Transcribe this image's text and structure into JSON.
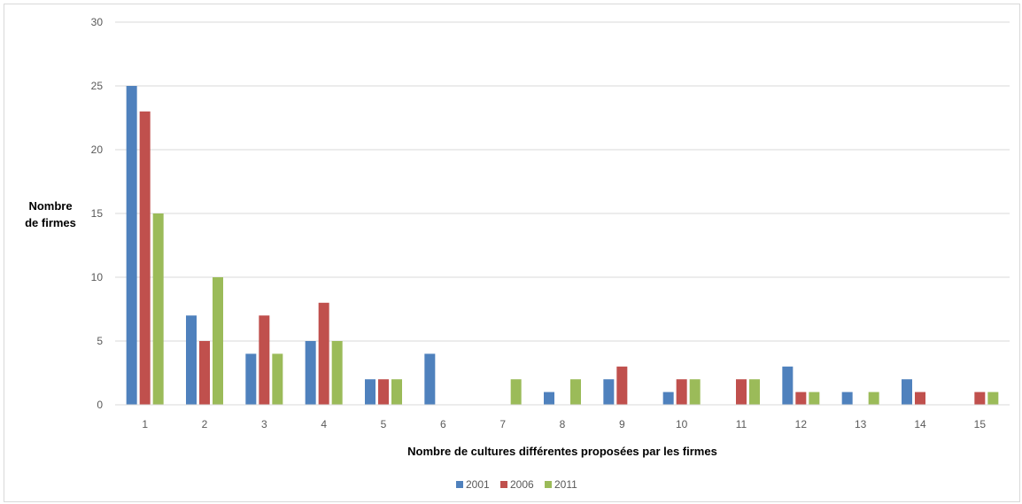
{
  "chart_data": {
    "type": "bar",
    "title": "",
    "xlabel": "Nombre de cultures différentes proposées par les firmes",
    "ylabel_lines": [
      "Nombre",
      "de firmes"
    ],
    "ylim": [
      0,
      30
    ],
    "yticks": [
      0,
      5,
      10,
      15,
      20,
      25,
      30
    ],
    "grid": true,
    "legend_position": "bottom",
    "categories": [
      "1",
      "2",
      "3",
      "4",
      "5",
      "6",
      "7",
      "8",
      "9",
      "10",
      "11",
      "12",
      "13",
      "14",
      "15"
    ],
    "series": [
      {
        "name": "2001",
        "color": "#4F81BD",
        "values": [
          25,
          7,
          4,
          5,
          2,
          4,
          0,
          1,
          2,
          1,
          0,
          3,
          1,
          2,
          0
        ]
      },
      {
        "name": "2006",
        "color": "#C0504D",
        "values": [
          23,
          5,
          7,
          8,
          2,
          0,
          0,
          0,
          3,
          2,
          2,
          1,
          0,
          1,
          1
        ]
      },
      {
        "name": "2011",
        "color": "#9BBB59",
        "values": [
          15,
          10,
          4,
          5,
          2,
          0,
          2,
          2,
          0,
          2,
          2,
          1,
          1,
          0,
          1
        ]
      }
    ]
  }
}
